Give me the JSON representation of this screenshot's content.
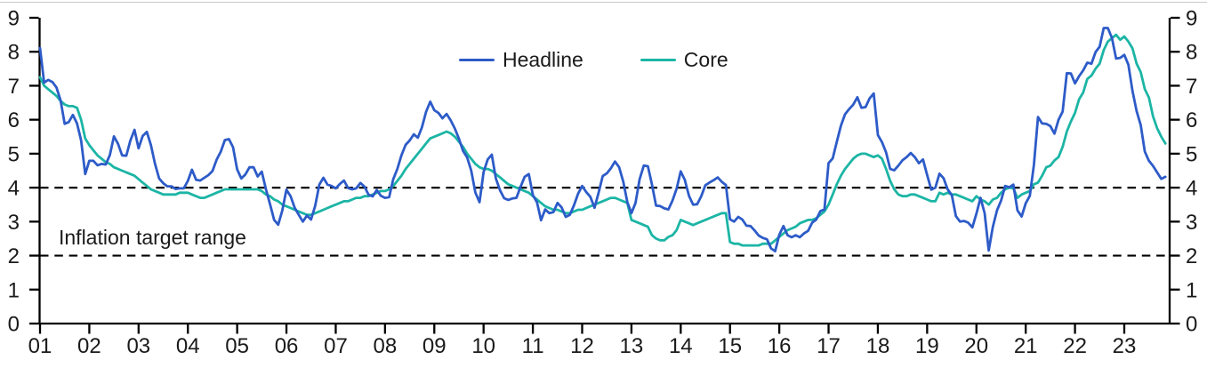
{
  "chart_data": {
    "type": "line",
    "title": "",
    "xlabel": "",
    "ylabel": "",
    "x_unit": "monthly",
    "x_range": "2001-01 to 2023-11",
    "x_tick_labels": [
      "01",
      "02",
      "03",
      "04",
      "05",
      "06",
      "07",
      "08",
      "09",
      "10",
      "11",
      "12",
      "13",
      "14",
      "15",
      "16",
      "17",
      "18",
      "19",
      "20",
      "21",
      "22",
      "23"
    ],
    "ylim": [
      0,
      9
    ],
    "y_ticks": [
      0,
      1,
      2,
      3,
      4,
      5,
      6,
      7,
      8,
      9
    ],
    "y_axis_sides": "both",
    "grid": false,
    "legend_position": "top-center",
    "annotation": "Inflation target range",
    "target_range": {
      "label": "Inflation target range",
      "lines": [
        2,
        4
      ],
      "line_style": "dashed",
      "line_color": "#000000"
    },
    "axis_color": "#000000",
    "series": [
      {
        "name": "Headline",
        "color": "#2d5bc8",
        "values": [
          8.11,
          7.09,
          7.17,
          7.11,
          6.95,
          6.57,
          5.88,
          5.93,
          6.14,
          5.89,
          5.39,
          4.4,
          4.79,
          4.79,
          4.66,
          4.7,
          4.68,
          4.96,
          5.51,
          5.29,
          4.95,
          4.94,
          5.39,
          5.7,
          5.16,
          5.52,
          5.64,
          5.25,
          4.7,
          4.27,
          4.13,
          4.04,
          4.04,
          3.96,
          3.98,
          3.98,
          4.2,
          4.53,
          4.23,
          4.21,
          4.29,
          4.37,
          4.49,
          4.82,
          5.06,
          5.4,
          5.43,
          5.19,
          4.54,
          4.27,
          4.39,
          4.6,
          4.6,
          4.33,
          4.47,
          3.95,
          3.51,
          3.05,
          2.91,
          3.33,
          3.94,
          3.75,
          3.41,
          3.2,
          3.0,
          3.18,
          3.06,
          3.47,
          4.09,
          4.29,
          4.09,
          4.05,
          3.98,
          4.11,
          4.21,
          3.99,
          3.95,
          3.98,
          4.14,
          4.03,
          3.79,
          3.74,
          3.93,
          3.76,
          3.7,
          3.72,
          4.25,
          4.55,
          4.95,
          5.26,
          5.39,
          5.57,
          5.47,
          5.78,
          6.23,
          6.53,
          6.28,
          6.2,
          6.04,
          6.17,
          5.98,
          5.74,
          5.44,
          5.08,
          4.89,
          4.5,
          3.86,
          3.57,
          4.46,
          4.83,
          4.97,
          4.27,
          3.92,
          3.69,
          3.64,
          3.68,
          3.7,
          4.02,
          4.32,
          4.4,
          3.78,
          3.57,
          3.04,
          3.36,
          3.25,
          3.28,
          3.55,
          3.42,
          3.14,
          3.2,
          3.48,
          3.82,
          4.05,
          3.87,
          3.73,
          3.41,
          3.85,
          4.34,
          4.42,
          4.57,
          4.77,
          4.6,
          4.18,
          3.57,
          3.25,
          3.55,
          4.25,
          4.65,
          4.63,
          4.09,
          3.47,
          3.46,
          3.39,
          3.36,
          3.62,
          3.97,
          4.48,
          4.23,
          3.76,
          3.5,
          3.51,
          3.75,
          4.07,
          4.15,
          4.22,
          4.3,
          4.17,
          4.08,
          3.07,
          3.0,
          3.14,
          3.06,
          2.88,
          2.87,
          2.74,
          2.59,
          2.52,
          2.48,
          2.21,
          2.13,
          2.61,
          2.87,
          2.6,
          2.54,
          2.6,
          2.54,
          2.65,
          2.73,
          2.97,
          3.06,
          3.31,
          3.36,
          4.72,
          4.86,
          5.35,
          5.82,
          6.16,
          6.31,
          6.44,
          6.66,
          6.35,
          6.37,
          6.63,
          6.77,
          5.55,
          5.34,
          5.04,
          4.55,
          4.51,
          4.65,
          4.81,
          4.9,
          5.02,
          4.9,
          4.72,
          4.83,
          4.37,
          3.94,
          4.0,
          4.41,
          4.28,
          3.95,
          3.78,
          3.16,
          3.0,
          3.02,
          2.97,
          2.83,
          3.24,
          3.7,
          3.25,
          2.15,
          2.84,
          3.33,
          3.62,
          4.05,
          4.01,
          4.09,
          3.33,
          3.15,
          3.54,
          3.76,
          4.67,
          6.08,
          5.89,
          5.88,
          5.81,
          5.59,
          6.0,
          6.24,
          7.37,
          7.36,
          7.07,
          7.28,
          7.45,
          7.68,
          7.65,
          7.99,
          8.15,
          8.7,
          8.7,
          8.41,
          7.8,
          7.82,
          7.91,
          7.62,
          6.85,
          6.25,
          5.84,
          5.06,
          4.79,
          4.64,
          4.45,
          4.26,
          4.32
        ]
      },
      {
        "name": "Core",
        "color": "#1cb5a5",
        "values": [
          7.25,
          7.0,
          6.9,
          6.8,
          6.7,
          6.55,
          6.45,
          6.4,
          6.4,
          6.35,
          6.0,
          5.45,
          5.25,
          5.1,
          4.95,
          4.85,
          4.75,
          4.7,
          4.6,
          4.55,
          4.5,
          4.45,
          4.4,
          4.35,
          4.25,
          4.15,
          4.05,
          3.95,
          3.9,
          3.85,
          3.8,
          3.8,
          3.8,
          3.8,
          3.85,
          3.85,
          3.85,
          3.8,
          3.75,
          3.7,
          3.7,
          3.75,
          3.8,
          3.85,
          3.9,
          3.95,
          3.95,
          3.95,
          3.95,
          3.95,
          3.95,
          3.95,
          3.95,
          3.95,
          3.9,
          3.8,
          3.75,
          3.65,
          3.6,
          3.5,
          3.45,
          3.4,
          3.35,
          3.3,
          3.25,
          3.2,
          3.2,
          3.25,
          3.3,
          3.35,
          3.4,
          3.45,
          3.5,
          3.55,
          3.6,
          3.6,
          3.65,
          3.7,
          3.7,
          3.75,
          3.75,
          3.8,
          3.85,
          3.9,
          3.9,
          3.95,
          4.05,
          4.2,
          4.35,
          4.55,
          4.7,
          4.85,
          5.0,
          5.15,
          5.3,
          5.45,
          5.5,
          5.55,
          5.6,
          5.65,
          5.6,
          5.5,
          5.35,
          5.2,
          5.0,
          4.85,
          4.7,
          4.6,
          4.55,
          4.55,
          4.5,
          4.4,
          4.3,
          4.2,
          4.1,
          4.05,
          4.0,
          3.95,
          3.9,
          3.85,
          3.75,
          3.65,
          3.55,
          3.45,
          3.4,
          3.35,
          3.35,
          3.3,
          3.25,
          3.25,
          3.3,
          3.35,
          3.35,
          3.4,
          3.45,
          3.5,
          3.55,
          3.6,
          3.65,
          3.7,
          3.7,
          3.65,
          3.6,
          3.55,
          3.05,
          3.0,
          2.95,
          2.9,
          2.85,
          2.6,
          2.5,
          2.45,
          2.45,
          2.55,
          2.6,
          2.75,
          3.05,
          3.0,
          2.95,
          2.9,
          2.95,
          3.0,
          3.05,
          3.1,
          3.15,
          3.2,
          3.25,
          3.25,
          2.4,
          2.35,
          2.35,
          2.3,
          2.3,
          2.3,
          2.3,
          2.3,
          2.35,
          2.35,
          2.35,
          2.45,
          2.55,
          2.65,
          2.75,
          2.8,
          2.85,
          2.95,
          3.0,
          3.05,
          3.05,
          3.1,
          3.2,
          3.3,
          3.5,
          3.8,
          4.1,
          4.35,
          4.55,
          4.7,
          4.85,
          4.95,
          5.0,
          5.0,
          4.95,
          4.9,
          4.95,
          4.85,
          4.55,
          4.2,
          3.95,
          3.8,
          3.75,
          3.75,
          3.8,
          3.8,
          3.75,
          3.7,
          3.65,
          3.6,
          3.6,
          3.85,
          3.8,
          3.85,
          3.8,
          3.8,
          3.75,
          3.7,
          3.65,
          3.6,
          3.75,
          3.65,
          3.6,
          3.5,
          3.65,
          3.7,
          3.85,
          3.95,
          4.0,
          3.98,
          3.7,
          3.8,
          3.85,
          3.9,
          4.1,
          4.15,
          4.35,
          4.6,
          4.65,
          4.8,
          4.9,
          5.2,
          5.65,
          5.95,
          6.2,
          6.6,
          6.8,
          7.2,
          7.3,
          7.5,
          7.65,
          8.05,
          8.3,
          8.4,
          8.5,
          8.35,
          8.45,
          8.3,
          8.1,
          7.65,
          7.4,
          6.9,
          6.65,
          6.1,
          5.75,
          5.5,
          5.3
        ]
      }
    ]
  }
}
